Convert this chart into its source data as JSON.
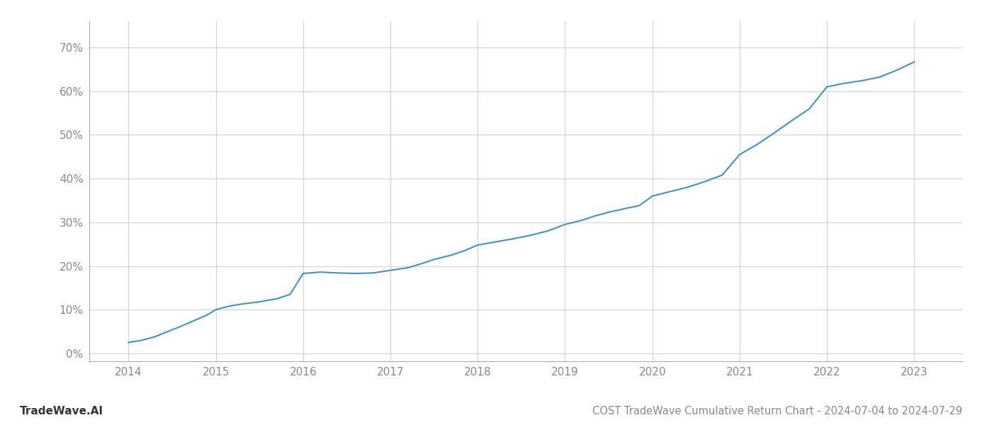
{
  "title": "COST TradeWave Cumulative Return Chart - 2024-07-04 to 2024-07-29",
  "watermark": "TradeWave.AI",
  "line_color": "#4a90b8",
  "background_color": "#ffffff",
  "grid_color": "#d0d0d8",
  "x_years": [
    2014,
    2015,
    2016,
    2017,
    2018,
    2019,
    2020,
    2021,
    2022,
    2023
  ],
  "data_points": [
    [
      2014.0,
      0.025
    ],
    [
      2014.15,
      0.03
    ],
    [
      2014.3,
      0.038
    ],
    [
      2014.45,
      0.05
    ],
    [
      2014.6,
      0.062
    ],
    [
      2014.75,
      0.075
    ],
    [
      2014.9,
      0.088
    ],
    [
      2015.0,
      0.1
    ],
    [
      2015.15,
      0.108
    ],
    [
      2015.3,
      0.113
    ],
    [
      2015.5,
      0.118
    ],
    [
      2015.7,
      0.125
    ],
    [
      2015.85,
      0.135
    ],
    [
      2016.0,
      0.183
    ],
    [
      2016.2,
      0.186
    ],
    [
      2016.4,
      0.184
    ],
    [
      2016.6,
      0.183
    ],
    [
      2016.8,
      0.184
    ],
    [
      2017.0,
      0.19
    ],
    [
      2017.2,
      0.196
    ],
    [
      2017.35,
      0.205
    ],
    [
      2017.5,
      0.215
    ],
    [
      2017.7,
      0.225
    ],
    [
      2017.85,
      0.235
    ],
    [
      2018.0,
      0.248
    ],
    [
      2018.2,
      0.255
    ],
    [
      2018.4,
      0.262
    ],
    [
      2018.6,
      0.27
    ],
    [
      2018.8,
      0.28
    ],
    [
      2019.0,
      0.295
    ],
    [
      2019.2,
      0.305
    ],
    [
      2019.35,
      0.315
    ],
    [
      2019.5,
      0.323
    ],
    [
      2019.7,
      0.332
    ],
    [
      2019.85,
      0.338
    ],
    [
      2020.0,
      0.36
    ],
    [
      2020.2,
      0.37
    ],
    [
      2020.4,
      0.38
    ],
    [
      2020.6,
      0.393
    ],
    [
      2020.8,
      0.408
    ],
    [
      2021.0,
      0.455
    ],
    [
      2021.2,
      0.478
    ],
    [
      2021.4,
      0.505
    ],
    [
      2021.6,
      0.533
    ],
    [
      2021.8,
      0.56
    ],
    [
      2022.0,
      0.61
    ],
    [
      2022.2,
      0.618
    ],
    [
      2022.4,
      0.624
    ],
    [
      2022.6,
      0.632
    ],
    [
      2022.8,
      0.648
    ],
    [
      2023.0,
      0.667
    ]
  ],
  "ylim": [
    -0.018,
    0.76
  ],
  "xlim": [
    2013.55,
    2023.55
  ],
  "yticks": [
    0.0,
    0.1,
    0.2,
    0.3,
    0.4,
    0.5,
    0.6,
    0.7
  ],
  "title_fontsize": 10.5,
  "watermark_fontsize": 11,
  "axis_tick_color": "#888888",
  "title_color": "#888888",
  "spine_color": "#aaaaaa"
}
